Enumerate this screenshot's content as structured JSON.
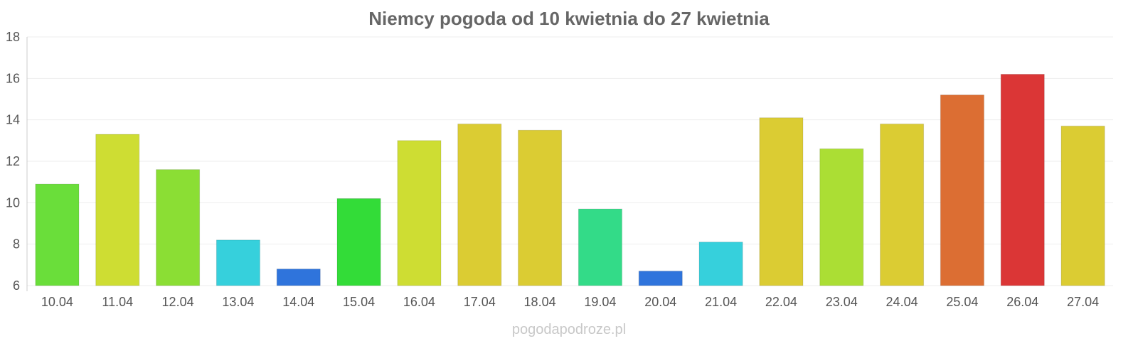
{
  "chart_data": {
    "type": "bar",
    "title": "Niemcy pogoda od 10 kwietnia do 27 kwietnia",
    "xlabel": "",
    "ylabel": "",
    "ylim": [
      6,
      18
    ],
    "yticks": [
      6,
      8,
      10,
      12,
      14,
      16,
      18
    ],
    "grid": true,
    "categories": [
      "10.04",
      "11.04",
      "12.04",
      "13.04",
      "14.04",
      "15.04",
      "16.04",
      "17.04",
      "18.04",
      "19.04",
      "20.04",
      "21.04",
      "22.04",
      "23.04",
      "24.04",
      "25.04",
      "26.04",
      "27.04"
    ],
    "values": [
      10.9,
      13.3,
      11.6,
      8.2,
      6.8,
      10.2,
      13.0,
      13.8,
      13.5,
      9.7,
      6.7,
      8.1,
      14.1,
      12.6,
      13.8,
      15.2,
      16.2,
      13.7
    ],
    "colors": [
      "#6ade3a",
      "#cedd33",
      "#8bde34",
      "#36d0dc",
      "#2f74dc",
      "#33dc38",
      "#cedd33",
      "#dbcc33",
      "#dbcc33",
      "#33db88",
      "#2f74dc",
      "#36d0dc",
      "#dbcc33",
      "#abde34",
      "#dbcc33",
      "#dc6e33",
      "#db3636",
      "#dbcc33"
    ]
  },
  "footer": {
    "credit": "pogodapodroze.pl"
  }
}
